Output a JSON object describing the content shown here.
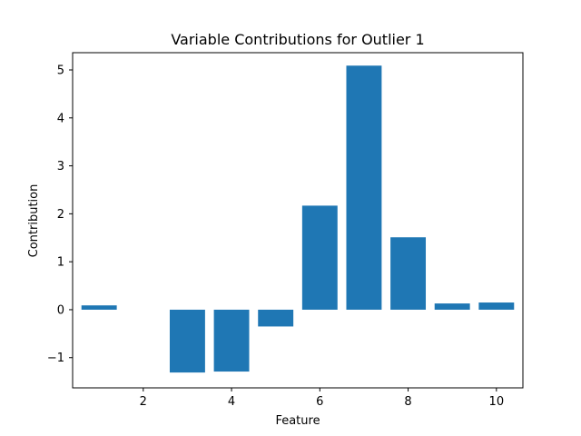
{
  "chart_data": {
    "type": "bar",
    "title": "Variable Contributions for Outlier 1",
    "xlabel": "Feature",
    "ylabel": "Contribution",
    "x": [
      1,
      2,
      3,
      4,
      5,
      6,
      7,
      8,
      9,
      10
    ],
    "values": [
      0.09,
      0.0,
      -1.31,
      -1.29,
      -0.35,
      2.17,
      5.09,
      1.51,
      0.13,
      0.15
    ],
    "xlim": [
      0.4,
      10.6
    ],
    "ylim": [
      -1.63,
      5.36
    ],
    "xticks": [
      2,
      4,
      6,
      8,
      10
    ],
    "yticks": [
      -1,
      0,
      1,
      2,
      3,
      4,
      5
    ],
    "ytick_labels": [
      "−1",
      "0",
      "1",
      "2",
      "3",
      "4",
      "5"
    ],
    "bar_color": "#1f77b4",
    "grid": false,
    "legend": false
  }
}
